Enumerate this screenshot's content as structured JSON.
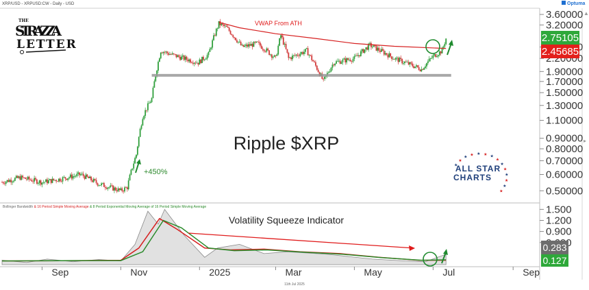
{
  "header": {
    "symbol_line": "XRP/USD - XRPUSD:CW - Daily - USD",
    "brand": "Optuma"
  },
  "watermark_logo": {
    "line1": "THE",
    "line2": "STRAZZA",
    "line3": "LETTER"
  },
  "allstar_logo": {
    "line1": "ALL STAR",
    "line2": "CHARTS"
  },
  "colors": {
    "up_candle": "#2e9e3a",
    "down_candle": "#d23b3b",
    "vwap": "#d61f1f",
    "support": "#9a9a9a",
    "price_badge": "#2ea83a",
    "vwap_badge": "#e3201b",
    "bbw_fill": "#c8c8c8",
    "sma": "#d61f1f",
    "ema": "#2a8a2a",
    "bbw_badge": "#6d6d6d",
    "ema_badge": "#2ea83a",
    "arrow": "#1f8a2e"
  },
  "chart_data": [
    {
      "type": "candlestick",
      "title": "Ripple $XRP",
      "y_scale": "log",
      "ylim": [
        0.45,
        3.8
      ],
      "y_ticks": [
        "3.60000",
        "3.20000",
        "2.50000",
        "2.20000",
        "1.90000",
        "1.70000",
        "1.50000",
        "1.30000",
        "1.10000",
        "0.90000",
        "0.80000",
        "0.70000",
        "0.60000",
        "0.50000"
      ],
      "x_tick_labels": [
        "Sep",
        "Nov",
        "2025",
        "Mar",
        "May",
        "Jul",
        "Sep"
      ],
      "date_stamp": "11th Jul 2025",
      "price_path": [
        {
          "date": "2024-08-01",
          "close": 0.55
        },
        {
          "date": "2024-08-15",
          "close": 0.58
        },
        {
          "date": "2024-09-01",
          "close": 0.55
        },
        {
          "date": "2024-09-15",
          "close": 0.57
        },
        {
          "date": "2024-10-01",
          "close": 0.6
        },
        {
          "date": "2024-10-15",
          "close": 0.54
        },
        {
          "date": "2024-11-01",
          "close": 0.5
        },
        {
          "date": "2024-11-06",
          "close": 0.52
        },
        {
          "date": "2024-11-13",
          "close": 0.75
        },
        {
          "date": "2024-11-18",
          "close": 1.15
        },
        {
          "date": "2024-11-25",
          "close": 1.4
        },
        {
          "date": "2024-12-02",
          "close": 2.4
        },
        {
          "date": "2024-12-10",
          "close": 2.3
        },
        {
          "date": "2024-12-20",
          "close": 2.2
        },
        {
          "date": "2024-12-31",
          "close": 2.1
        },
        {
          "date": "2025-01-08",
          "close": 2.3
        },
        {
          "date": "2025-01-16",
          "close": 3.25
        },
        {
          "date": "2025-01-22",
          "close": 3.1
        },
        {
          "date": "2025-02-03",
          "close": 2.5
        },
        {
          "date": "2025-02-15",
          "close": 2.6
        },
        {
          "date": "2025-03-01",
          "close": 2.2
        },
        {
          "date": "2025-03-05",
          "close": 2.85
        },
        {
          "date": "2025-03-11",
          "close": 2.2
        },
        {
          "date": "2025-03-25",
          "close": 2.4
        },
        {
          "date": "2025-04-07",
          "close": 1.7
        },
        {
          "date": "2025-04-15",
          "close": 2.1
        },
        {
          "date": "2025-05-01",
          "close": 2.2
        },
        {
          "date": "2025-05-13",
          "close": 2.55
        },
        {
          "date": "2025-06-01",
          "close": 2.2
        },
        {
          "date": "2025-06-22",
          "close": 1.95
        },
        {
          "date": "2025-07-01",
          "close": 2.25
        },
        {
          "date": "2025-07-08",
          "close": 2.4
        },
        {
          "date": "2025-07-11",
          "close": 2.75
        }
      ],
      "vwap_path": [
        {
          "date": "2025-01-16",
          "value": 3.3
        },
        {
          "date": "2025-02-01",
          "value": 3.1
        },
        {
          "date": "2025-03-01",
          "value": 2.9
        },
        {
          "date": "2025-04-01",
          "value": 2.75
        },
        {
          "date": "2025-05-01",
          "value": 2.6
        },
        {
          "date": "2025-06-01",
          "value": 2.52
        },
        {
          "date": "2025-07-11",
          "value": 2.46
        }
      ],
      "support_level": 1.82,
      "annotations": {
        "vwap_label": "VWAP From ATH",
        "gain_label": "+450%"
      },
      "last_price": "2.75105",
      "vwap_value": "2.45685"
    },
    {
      "type": "line",
      "indicator_desc": [
        {
          "text": "Bollinger Bandwidth ",
          "color": "#666666"
        },
        {
          "text": "& 16 Period Simple Moving Average ",
          "color": "#d61f1f"
        },
        {
          "text": "& 8 Period Exponential Moving Average of 16 Period Simple Moving Average",
          "color": "#2a8a2a"
        }
      ],
      "title": "Volatility Squeeze Indicator",
      "ylim": [
        0,
        1.6
      ],
      "y_ticks": [
        "1.500",
        "1.200",
        "0.900",
        "0.600"
      ],
      "bbw_path": [
        {
          "date": "2024-08-01",
          "value": 0.12
        },
        {
          "date": "2024-08-20",
          "value": 0.06
        },
        {
          "date": "2024-09-05",
          "value": 0.15
        },
        {
          "date": "2024-09-25",
          "value": 0.08
        },
        {
          "date": "2024-10-15",
          "value": 0.14
        },
        {
          "date": "2024-11-01",
          "value": 0.1
        },
        {
          "date": "2024-11-12",
          "value": 0.55
        },
        {
          "date": "2024-11-22",
          "value": 1.45
        },
        {
          "date": "2024-11-30",
          "value": 1.1
        },
        {
          "date": "2024-12-05",
          "value": 1.5
        },
        {
          "date": "2024-12-20",
          "value": 0.8
        },
        {
          "date": "2025-01-05",
          "value": 0.2
        },
        {
          "date": "2025-01-15",
          "value": 0.45
        },
        {
          "date": "2025-02-01",
          "value": 0.55
        },
        {
          "date": "2025-02-20",
          "value": 0.3
        },
        {
          "date": "2025-03-10",
          "value": 0.35
        },
        {
          "date": "2025-04-10",
          "value": 0.28
        },
        {
          "date": "2025-05-15",
          "value": 0.15
        },
        {
          "date": "2025-06-10",
          "value": 0.1
        },
        {
          "date": "2025-06-25",
          "value": 0.08
        },
        {
          "date": "2025-07-11",
          "value": 0.28
        }
      ],
      "sma_path": [
        {
          "date": "2024-08-01",
          "value": 0.1
        },
        {
          "date": "2024-10-01",
          "value": 0.11
        },
        {
          "date": "2024-11-01",
          "value": 0.12
        },
        {
          "date": "2024-11-15",
          "value": 0.45
        },
        {
          "date": "2024-12-01",
          "value": 1.25
        },
        {
          "date": "2024-12-15",
          "value": 0.95
        },
        {
          "date": "2025-01-05",
          "value": 0.45
        },
        {
          "date": "2025-01-25",
          "value": 0.4
        },
        {
          "date": "2025-02-20",
          "value": 0.42
        },
        {
          "date": "2025-03-20",
          "value": 0.35
        },
        {
          "date": "2025-04-20",
          "value": 0.3
        },
        {
          "date": "2025-05-20",
          "value": 0.2
        },
        {
          "date": "2025-06-20",
          "value": 0.12
        },
        {
          "date": "2025-07-11",
          "value": 0.12
        }
      ],
      "ema_path": [
        {
          "date": "2024-08-01",
          "value": 0.1
        },
        {
          "date": "2024-10-01",
          "value": 0.11
        },
        {
          "date": "2024-11-01",
          "value": 0.11
        },
        {
          "date": "2024-11-18",
          "value": 0.35
        },
        {
          "date": "2024-12-04",
          "value": 1.2
        },
        {
          "date": "2024-12-18",
          "value": 1.0
        },
        {
          "date": "2025-01-08",
          "value": 0.45
        },
        {
          "date": "2025-01-28",
          "value": 0.38
        },
        {
          "date": "2025-02-22",
          "value": 0.4
        },
        {
          "date": "2025-03-22",
          "value": 0.34
        },
        {
          "date": "2025-04-22",
          "value": 0.28
        },
        {
          "date": "2025-05-22",
          "value": 0.19
        },
        {
          "date": "2025-06-22",
          "value": 0.12
        },
        {
          "date": "2025-07-11",
          "value": 0.13
        }
      ],
      "bbw_value": "0.283",
      "ema_value": "0.127"
    }
  ]
}
